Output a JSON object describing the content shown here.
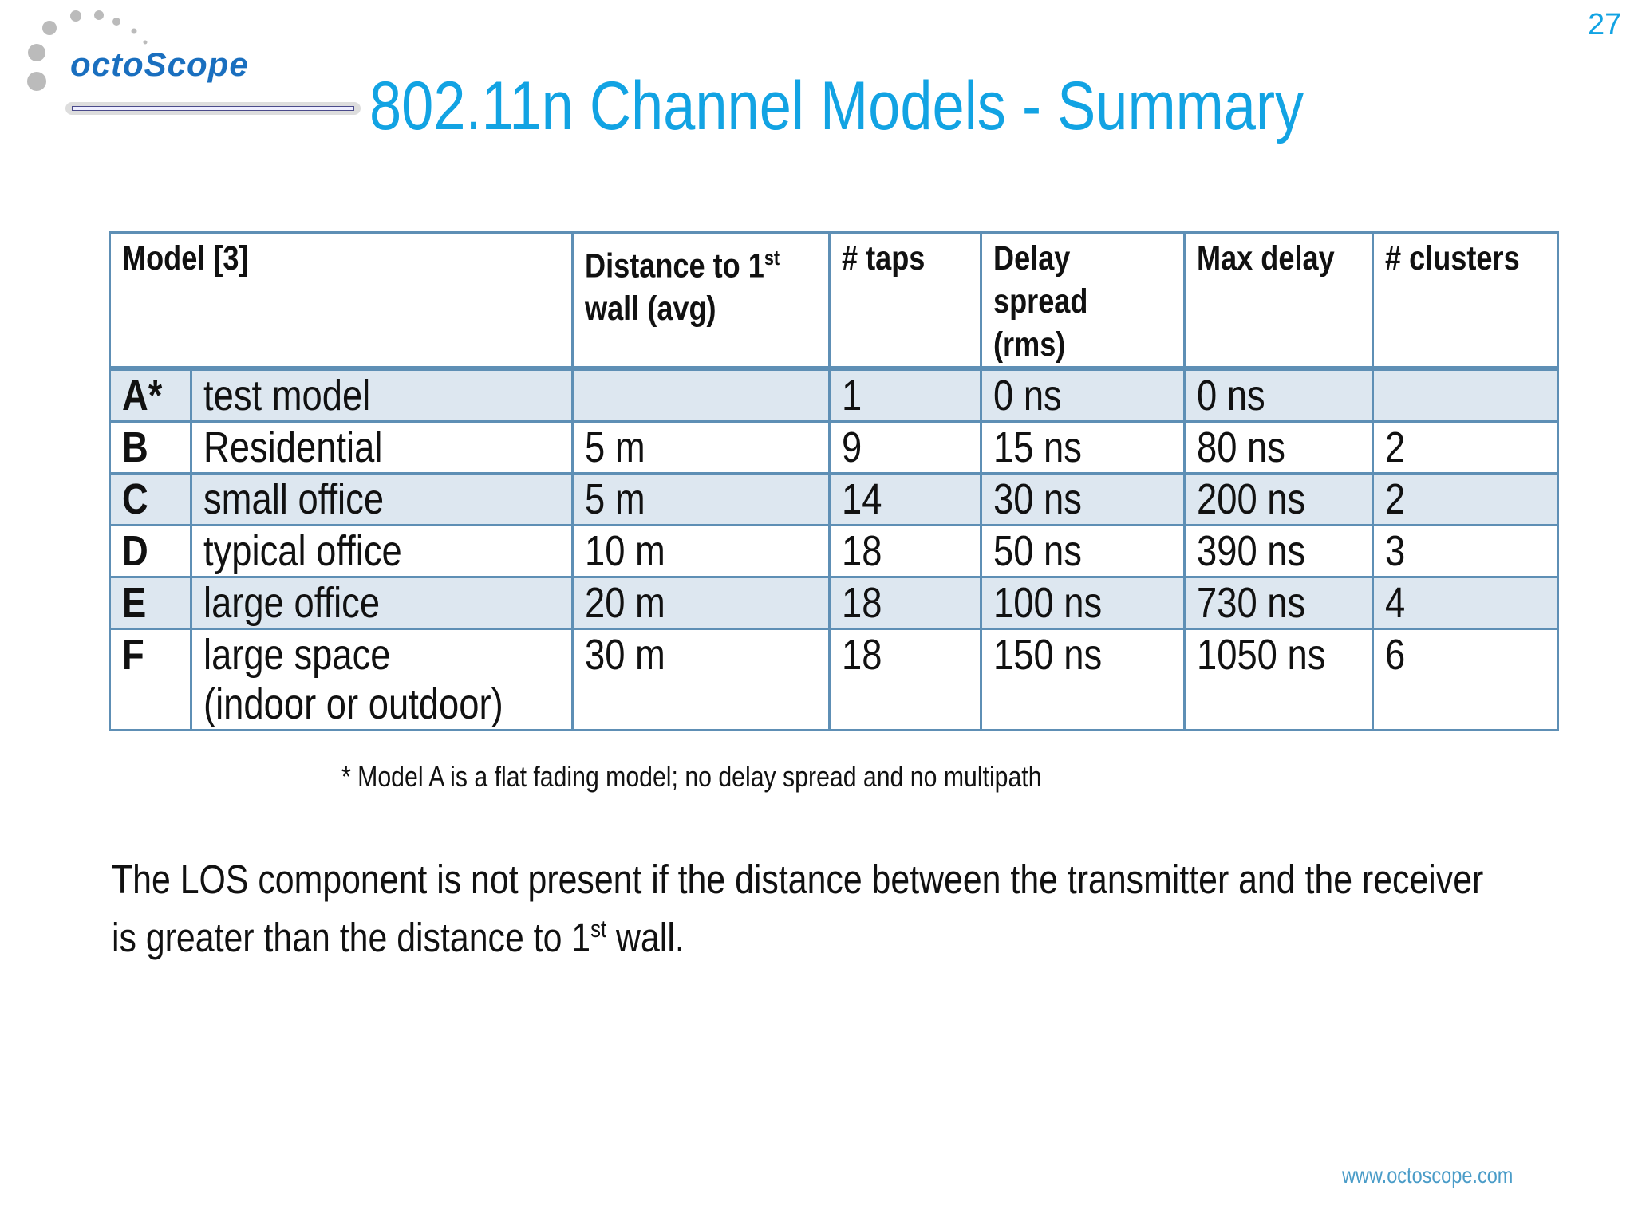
{
  "logo": {
    "text": "octoScope"
  },
  "page_number": "27",
  "title": "802.11n Channel Models - Summary",
  "table": {
    "headers": {
      "model": "Model [3]",
      "distance": "Distance to 1",
      "distance_sup": "st",
      "distance_2": "wall (avg)",
      "taps": "# taps",
      "delay_spread": "Delay spread (rms)",
      "max_delay": "Max delay",
      "clusters": "# clusters"
    },
    "rows": [
      {
        "letter": "A*",
        "name": "test model",
        "distance": "",
        "taps": "1",
        "delay_spread": "0 ns",
        "max_delay": "0 ns",
        "clusters": ""
      },
      {
        "letter": "B",
        "name": "Residential",
        "distance": "5 m",
        "taps": "9",
        "delay_spread": "15 ns",
        "max_delay": "80 ns",
        "clusters": "2"
      },
      {
        "letter": "C",
        "name": "small office",
        "distance": "5 m",
        "taps": "14",
        "delay_spread": "30 ns",
        "max_delay": "200 ns",
        "clusters": "2"
      },
      {
        "letter": "D",
        "name": "typical office",
        "distance": "10 m",
        "taps": "18",
        "delay_spread": "50 ns",
        "max_delay": "390 ns",
        "clusters": "3"
      },
      {
        "letter": "E",
        "name": "large office",
        "distance": "20 m",
        "taps": "18",
        "delay_spread": "100 ns",
        "max_delay": "730 ns",
        "clusters": "4"
      },
      {
        "letter": "F",
        "name": "large space",
        "name_2": "(indoor or outdoor)",
        "distance": "30 m",
        "taps": "18",
        "delay_spread": "150 ns",
        "max_delay": "1050 ns",
        "clusters": "6"
      }
    ]
  },
  "footnote": "* Model A is a flat fading model; no delay spread and no multipath",
  "paragraph": {
    "line1": "The LOS component is not present if the distance between the transmitter and the receiver",
    "line2_a": "is greater than the distance to 1",
    "line2_sup": "st",
    "line2_b": " wall."
  },
  "link": "www.octoscope.com",
  "colors": {
    "title": "#12a3e3",
    "table_border": "#5e8fb5",
    "row_shade": "#dde7f0",
    "logo": "#1a6fbf"
  }
}
